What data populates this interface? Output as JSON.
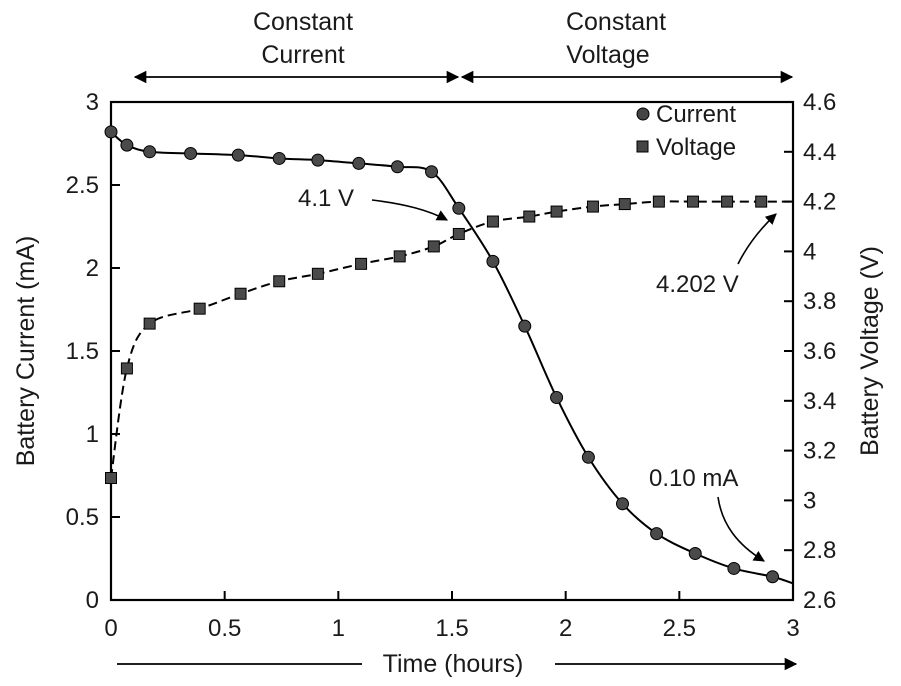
{
  "chart_data": {
    "type": "line",
    "xlabel": "Time (hours)",
    "ylabel": "Battery Current (mA)",
    "y2label": "Battery Voltage (V)",
    "xlim": [
      0,
      3
    ],
    "ylim": [
      0,
      3
    ],
    "y2lim": [
      2.6,
      4.6
    ],
    "xticks": [
      "0",
      "0.5",
      "1",
      "1.5",
      "2",
      "2.5",
      "3"
    ],
    "yticks": [
      "0",
      "0.5",
      "1",
      "1.5",
      "2",
      "2.5",
      "3"
    ],
    "y2ticks": [
      "2.6",
      "2.8",
      "3",
      "3.2",
      "3.4",
      "3.6",
      "3.8",
      "4",
      "4.2",
      "4.4",
      "4.6"
    ],
    "grid": false,
    "legend_position": "top-right",
    "regions": [
      {
        "label_line1": "Constant",
        "label_line2": "Current",
        "x_range": [
          0,
          1.5
        ]
      },
      {
        "label_line1": "Constant",
        "label_line2": "Voltage",
        "x_range": [
          1.5,
          3
        ]
      }
    ],
    "series": [
      {
        "name": "Current",
        "axis": "left",
        "marker": "circle",
        "line_style": "solid",
        "x": [
          0,
          0.07,
          0.17,
          0.35,
          0.56,
          0.74,
          0.91,
          1.09,
          1.26,
          1.41,
          1.53,
          1.68,
          1.82,
          1.96,
          2.1,
          2.25,
          2.4,
          2.57,
          2.74,
          2.91
        ],
        "y": [
          2.82,
          2.74,
          2.7,
          2.69,
          2.68,
          2.66,
          2.65,
          2.63,
          2.61,
          2.58,
          2.36,
          2.04,
          1.65,
          1.22,
          0.86,
          0.58,
          0.4,
          0.28,
          0.19,
          0.14
        ],
        "curve_end": [
          3.0,
          0.1
        ]
      },
      {
        "name": "Voltage",
        "axis": "right",
        "marker": "square",
        "line_style": "dashed",
        "x": [
          0,
          0.07,
          0.17,
          0.39,
          0.57,
          0.74,
          0.91,
          1.1,
          1.27,
          1.42,
          1.53,
          1.68,
          1.84,
          1.96,
          2.12,
          2.26,
          2.41,
          2.56,
          2.71,
          2.86
        ],
        "y": [
          3.09,
          3.53,
          3.71,
          3.77,
          3.83,
          3.88,
          3.91,
          3.95,
          3.98,
          4.02,
          4.07,
          4.12,
          4.14,
          4.16,
          4.18,
          4.19,
          4.2,
          4.2,
          4.2,
          4.2
        ],
        "curve_end": [
          3.0,
          4.2
        ]
      }
    ],
    "annotations": [
      {
        "text": "4.1 V",
        "points_to": {
          "x": 1.48,
          "y2": 4.1
        }
      },
      {
        "text": "4.202 V",
        "points_to": {
          "x": 2.81,
          "y2": 4.2
        }
      },
      {
        "text": "0.10 mA",
        "points_to": {
          "x": 2.9,
          "y": 0.15
        }
      }
    ],
    "bottom_arrow_label": "Time (hours)"
  }
}
